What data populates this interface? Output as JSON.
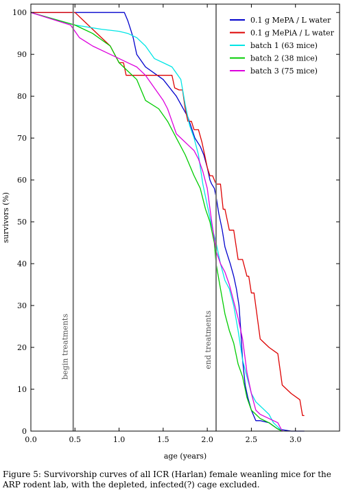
{
  "chart_data": {
    "type": "line",
    "xlabel": "age (years)",
    "ylabel": "survivors (%)",
    "xlim": [
      0,
      3.5
    ],
    "ylim": [
      0,
      102
    ],
    "x_ticks": [
      0.0,
      0.5,
      1.0,
      1.5,
      2.0,
      2.5,
      3.0
    ],
    "x_tick_labels": [
      "0.0",
      "0.5",
      "1.0",
      "1.5",
      "2.0",
      "2.5",
      "3.0"
    ],
    "y_ticks": [
      0,
      10,
      20,
      30,
      40,
      50,
      60,
      70,
      80,
      90,
      100
    ],
    "y_tick_labels": [
      "0",
      "10",
      "20",
      "30",
      "40",
      "50",
      "60",
      "70",
      "80",
      "90",
      "100"
    ],
    "grid": false,
    "legend_position": "top-right",
    "vlines": [
      {
        "x": 0.48,
        "label": "begin treatments",
        "color": "#777777"
      },
      {
        "x": 2.1,
        "label": "end treatments",
        "color": "#777777"
      }
    ],
    "series": [
      {
        "name": "0.1 g MePA / L water",
        "color": "#0000cc",
        "x": [
          0,
          1.06,
          1.1,
          1.13,
          1.16,
          1.2,
          1.3,
          1.5,
          1.65,
          1.78,
          1.86,
          1.92,
          1.96,
          2.0,
          2.03,
          2.05,
          2.08,
          2.1,
          2.13,
          2.17,
          2.2,
          2.23,
          2.26,
          2.3,
          2.33,
          2.36,
          2.38,
          2.4,
          2.43,
          2.46,
          2.5,
          2.55,
          2.6,
          2.7,
          2.8,
          2.95,
          3.1
        ],
        "y": [
          100,
          100,
          98,
          96,
          94,
          90,
          87,
          84,
          80,
          75,
          70,
          68,
          66,
          63,
          60,
          59,
          58,
          56,
          52,
          48,
          44,
          42,
          40,
          37,
          34,
          30,
          24,
          17,
          11,
          8,
          5,
          2.5,
          2.5,
          2,
          0.5,
          0,
          0
        ]
      },
      {
        "name": "0.1 g MePiA / L water",
        "color": "#dd0000",
        "x": [
          0,
          0.5,
          0.7,
          0.9,
          1.0,
          1.05,
          1.08,
          1.35,
          1.6,
          1.63,
          1.68,
          1.72,
          1.75,
          1.78,
          1.82,
          1.85,
          1.9,
          1.94,
          1.97,
          2.0,
          2.03,
          2.06,
          2.1,
          2.15,
          2.18,
          2.2,
          2.25,
          2.3,
          2.35,
          2.4,
          2.45,
          2.47,
          2.5,
          2.53,
          2.6,
          2.7,
          2.8,
          2.85,
          2.95,
          3.05,
          3.08,
          3.1
        ],
        "y": [
          100,
          100,
          96,
          92,
          88,
          88,
          85,
          85,
          85,
          82,
          81.5,
          81.5,
          77,
          74,
          74,
          72,
          72,
          69,
          66,
          63,
          61,
          61,
          59,
          59,
          53,
          53,
          48,
          48,
          41,
          41,
          37,
          37,
          33,
          33,
          22,
          20,
          18.5,
          11,
          9,
          7.5,
          3.7,
          3.7
        ]
      },
      {
        "name": "batch 1 (63 mice)",
        "color": "#00e5e5",
        "x": [
          0,
          0.5,
          0.8,
          1.0,
          1.1,
          1.2,
          1.3,
          1.4,
          1.5,
          1.6,
          1.7,
          1.75,
          1.8,
          1.85,
          1.9,
          1.95,
          2.0,
          2.05,
          2.1,
          2.15,
          2.2,
          2.25,
          2.3,
          2.35,
          2.4,
          2.45,
          2.5,
          2.55,
          2.6,
          2.7,
          2.75,
          2.85
        ],
        "y": [
          100,
          97,
          96,
          95.5,
          95,
          94,
          92,
          89,
          88,
          87,
          84,
          78,
          73,
          70,
          66,
          59,
          54,
          49,
          45,
          40,
          36,
          34,
          30,
          24,
          17,
          13,
          9,
          7,
          6,
          4,
          2,
          0
        ]
      },
      {
        "name": "batch 2 (38 mice)",
        "color": "#00cc00",
        "x": [
          0,
          0.5,
          0.7,
          0.9,
          1.0,
          1.1,
          1.2,
          1.3,
          1.45,
          1.55,
          1.65,
          1.75,
          1.85,
          1.92,
          1.98,
          2.03,
          2.08,
          2.1,
          2.15,
          2.2,
          2.25,
          2.3,
          2.35,
          2.4,
          2.45,
          2.5,
          2.55,
          2.6,
          2.7,
          2.8,
          2.85
        ],
        "y": [
          100,
          97,
          95,
          92,
          88,
          86,
          84,
          79,
          77,
          74,
          70,
          66,
          61,
          58,
          53,
          50,
          45,
          40,
          34,
          28,
          24,
          21,
          16,
          13,
          8,
          5,
          4,
          3,
          2,
          0.5,
          0
        ]
      },
      {
        "name": "batch 3 (75 mice)",
        "color": "#dd00dd",
        "x": [
          0,
          0.45,
          0.55,
          0.7,
          0.9,
          1.0,
          1.1,
          1.2,
          1.3,
          1.4,
          1.5,
          1.55,
          1.6,
          1.65,
          1.7,
          1.8,
          1.85,
          1.9,
          1.95,
          2.0,
          2.05,
          2.1,
          2.15,
          2.2,
          2.25,
          2.3,
          2.35,
          2.4,
          2.45,
          2.5,
          2.55,
          2.6,
          2.7,
          2.8,
          2.85
        ],
        "y": [
          100,
          97,
          94,
          92,
          90,
          89,
          88,
          87,
          85,
          82,
          79,
          77,
          74,
          71,
          70,
          68,
          67,
          65,
          62,
          58,
          50,
          43,
          40,
          38,
          35,
          31,
          27,
          22,
          14,
          9,
          5,
          4,
          3,
          2,
          0
        ]
      }
    ]
  },
  "caption": "Figure 5:  Survivorship curves of all ICR (Harlan) female weanling mice for the ARP rodent lab, with the depleted, infected(?) cage excluded."
}
